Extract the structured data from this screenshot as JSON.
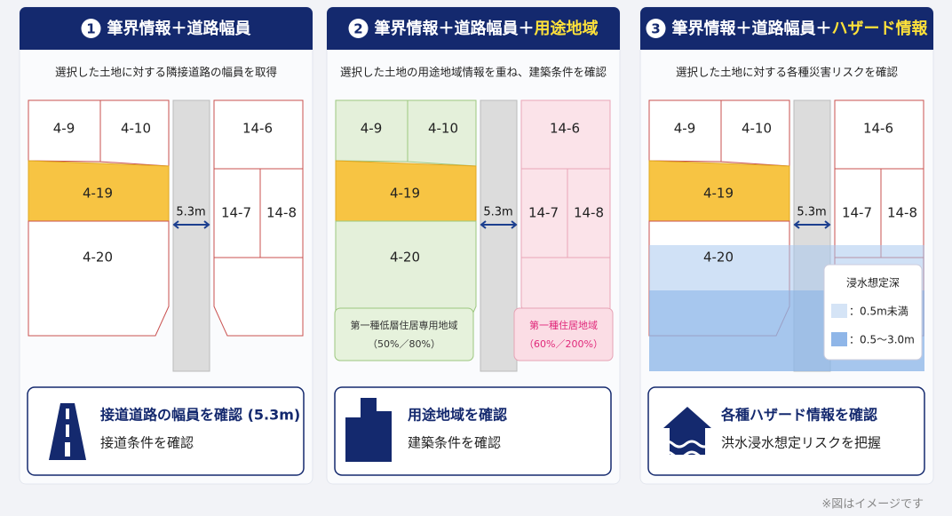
{
  "panels": [
    {
      "number": "1",
      "title": "筆界情報＋道路幅員",
      "subtitle": "選択した土地に対する隣接道路の幅員を取得",
      "lots": [
        "4-9",
        "4-10",
        "4-19",
        "4-20",
        "14-6",
        "14-7",
        "14-8"
      ],
      "road_width": "5.3m",
      "card": {
        "title": "接道道路の幅員を確認 (5.3m)",
        "subtitle": "接道条件を確認"
      }
    },
    {
      "number": "2",
      "title": "筆界情報＋道路幅員＋",
      "title_highlight": "用途地域",
      "subtitle": "選択した土地の用途地域情報を重ね、建築条件を確認",
      "lots": [
        "4-9",
        "4-10",
        "4-19",
        "4-20",
        "14-6",
        "14-7",
        "14-8"
      ],
      "road_width": "5.3m",
      "zones": [
        {
          "name": "第一種低層住居専用地域",
          "ratio": "（50%／80%）"
        },
        {
          "name": "第一種住居地域",
          "ratio": "（60%／200%）"
        }
      ],
      "card": {
        "title": "用途地域を確認",
        "subtitle": "建築条件を確認"
      }
    },
    {
      "number": "3",
      "title": "筆界情報＋道路幅員＋",
      "title_highlight": "ハザード情報",
      "subtitle": "選択した土地に対する各種災害リスクを確認",
      "lots": [
        "4-9",
        "4-10",
        "4-19",
        "4-20",
        "14-6",
        "14-7",
        "14-8"
      ],
      "road_width": "5.3m",
      "legend": {
        "title": "浸水想定深",
        "items": [
          "：0.5m未満",
          "：0.5〜3.0m"
        ]
      },
      "card": {
        "title": "各種ハザード情報を確認",
        "subtitle": "洪水浸水想定リスクを把握"
      }
    }
  ],
  "footnote": "※図はイメージです"
}
